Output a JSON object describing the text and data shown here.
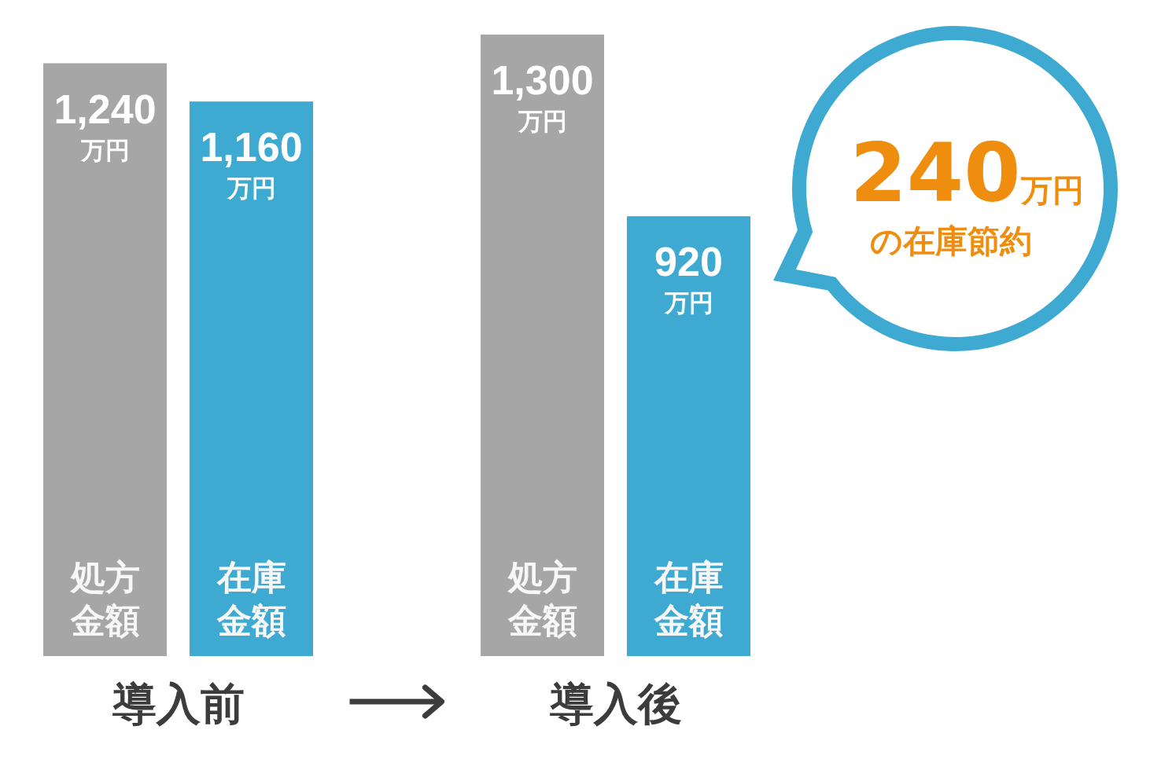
{
  "chart_data": {
    "type": "bar",
    "categories": [
      "導入前",
      "導入後"
    ],
    "series": [
      {
        "name": "処方金額",
        "color": "#a6a6a6",
        "values": [
          1240,
          1300
        ],
        "value_labels": [
          "1,240万円",
          "1,300万円"
        ]
      },
      {
        "name": "在庫金額",
        "color": "#3eaad2",
        "values": [
          1160,
          920
        ],
        "value_labels": [
          "1,160万円",
          "920万円"
        ]
      }
    ],
    "annotations": [
      "240万円",
      "の在庫節約"
    ],
    "tick_labels": "x"
  }
}
